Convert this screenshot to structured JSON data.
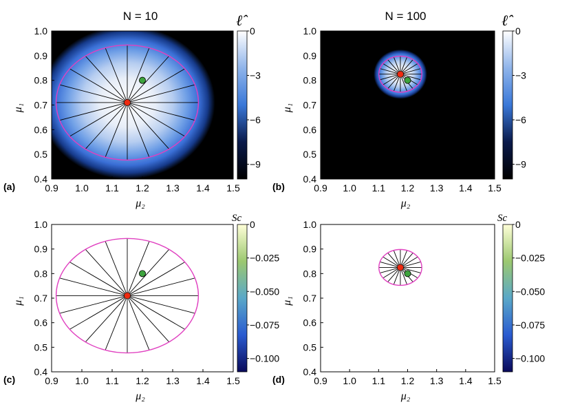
{
  "chart_data": [
    {
      "id": "a",
      "type": "heatmap",
      "panel_label": "(a)",
      "title": "N = 10",
      "xlabel": "μ₂",
      "ylabel": "μ₁",
      "xlim": [
        0.9,
        1.5
      ],
      "ylim": [
        0.4,
        1.0
      ],
      "xticks": [
        "0.9",
        "1.0",
        "1.1",
        "1.2",
        "1.3",
        "1.4",
        "1.5"
      ],
      "yticks": [
        "0.4",
        "0.5",
        "0.6",
        "0.7",
        "0.8",
        "0.9",
        "1.0"
      ],
      "colorbar": {
        "label": "ℓ̂",
        "ticks": [
          "0",
          "-3",
          "-6",
          "-9"
        ],
        "range": [
          -10,
          0
        ],
        "gradient": [
          "#000000",
          "#0a1a4a",
          "#3a78d8",
          "#8fb4ea",
          "#ffffff"
        ]
      },
      "background": "#000000",
      "heat": {
        "center": [
          1.15,
          0.71
        ],
        "scale": [
          0.29,
          0.31
        ]
      },
      "ellipse": {
        "center": [
          1.15,
          0.71
        ],
        "rx": 0.235,
        "ry": 0.233,
        "spokes": 20,
        "color": "#e040c0"
      },
      "red_point": [
        1.15,
        0.71
      ],
      "green_point": [
        1.2,
        0.8
      ]
    },
    {
      "id": "b",
      "type": "heatmap",
      "panel_label": "(b)",
      "title": "N = 100",
      "xlabel": "μ₂",
      "ylabel": "μ₁",
      "xlim": [
        0.9,
        1.5
      ],
      "ylim": [
        0.4,
        1.0
      ],
      "xticks": [
        "0.9",
        "1.0",
        "1.1",
        "1.2",
        "1.3",
        "1.4",
        "1.5"
      ],
      "yticks": [
        "0.4",
        "0.5",
        "0.6",
        "0.7",
        "0.8",
        "0.9",
        "1.0"
      ],
      "colorbar": {
        "label": "ℓ̂",
        "ticks": [
          "0",
          "-3",
          "-6",
          "-9"
        ],
        "range": [
          -10,
          0
        ],
        "gradient": [
          "#000000",
          "#0a1a4a",
          "#3a78d8",
          "#8fb4ea",
          "#ffffff"
        ]
      },
      "background": "#000000",
      "heat": {
        "center": [
          1.175,
          0.825
        ],
        "scale": [
          0.092,
          0.1
        ]
      },
      "ellipse": {
        "center": [
          1.175,
          0.825
        ],
        "rx": 0.074,
        "ry": 0.073,
        "spokes": 20,
        "color": "#e040c0"
      },
      "red_point": [
        1.175,
        0.825
      ],
      "green_point": [
        1.2,
        0.8
      ]
    },
    {
      "id": "c",
      "type": "heatmap",
      "panel_label": "(c)",
      "title": "",
      "xlabel": "μ₂",
      "ylabel": "μ₁",
      "xlim": [
        0.9,
        1.5
      ],
      "ylim": [
        0.4,
        1.0
      ],
      "xticks": [
        "0.9",
        "1.0",
        "1.1",
        "1.2",
        "1.3",
        "1.4",
        "1.5"
      ],
      "yticks": [
        "0.4",
        "0.5",
        "0.6",
        "0.7",
        "0.8",
        "0.9",
        "1.0"
      ],
      "colorbar": {
        "label": "Sc",
        "ticks": [
          "0",
          "-0.025",
          "-0.050",
          "-0.075",
          "-0.100"
        ],
        "range": [
          -0.11,
          0
        ],
        "gradient": [
          "#0a0a5a",
          "#2a5bd0",
          "#5aa8c8",
          "#9cc870",
          "#ffffd8"
        ]
      },
      "background": "#ffffff",
      "ellipse": {
        "center": [
          1.15,
          0.71
        ],
        "rx": 0.235,
        "ry": 0.233,
        "spokes": 20,
        "color": "#e040c0"
      },
      "red_point": [
        1.15,
        0.71
      ],
      "green_point": [
        1.2,
        0.8
      ]
    },
    {
      "id": "d",
      "type": "heatmap",
      "panel_label": "(d)",
      "title": "",
      "xlabel": "μ₂",
      "ylabel": "μ₁",
      "xlim": [
        0.9,
        1.5
      ],
      "ylim": [
        0.4,
        1.0
      ],
      "xticks": [
        "0.9",
        "1.0",
        "1.1",
        "1.2",
        "1.3",
        "1.4",
        "1.5"
      ],
      "yticks": [
        "0.4",
        "0.5",
        "0.6",
        "0.7",
        "0.8",
        "0.9",
        "1.0"
      ],
      "colorbar": {
        "label": "Sc",
        "ticks": [
          "0",
          "-0.025",
          "-0.050",
          "-0.075",
          "-0.100"
        ],
        "range": [
          -0.11,
          0
        ],
        "gradient": [
          "#0a0a5a",
          "#2a5bd0",
          "#5aa8c8",
          "#9cc870",
          "#ffffd8"
        ]
      },
      "background": "#ffffff",
      "ellipse": {
        "center": [
          1.175,
          0.825
        ],
        "rx": 0.074,
        "ry": 0.073,
        "spokes": 20,
        "color": "#e040c0"
      },
      "red_point": [
        1.175,
        0.825
      ],
      "green_point": [
        1.2,
        0.8
      ]
    }
  ]
}
